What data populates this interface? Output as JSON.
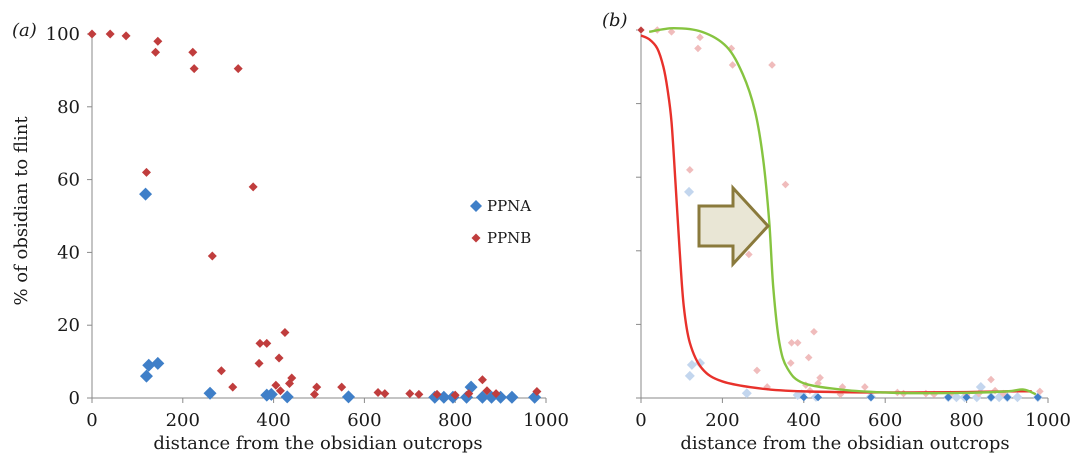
{
  "chart_data": [
    {
      "type": "scatter",
      "panel_label": "(a)",
      "xlabel": "distance from the obsidian outcrops",
      "ylabel": "% of obsidian to flint",
      "xlim": [
        0,
        1000
      ],
      "ylim": [
        0,
        100
      ],
      "x_ticks": [
        0,
        200,
        400,
        600,
        800,
        1000
      ],
      "y_ticks": [
        0,
        20,
        40,
        60,
        80,
        100
      ],
      "legend_position": "right-middle",
      "series": [
        {
          "name": "PPNA",
          "color": "#3f7fc8",
          "marker": "diamond-large",
          "points": [
            [
              118,
              56
            ],
            [
              120,
              6
            ],
            [
              125,
              9
            ],
            [
              145,
              9.5
            ],
            [
              260,
              1.3
            ],
            [
              385,
              0.8
            ],
            [
              395,
              1
            ],
            [
              430,
              0.3
            ],
            [
              565,
              0.3
            ],
            [
              755,
              0.2
            ],
            [
              775,
              0.2
            ],
            [
              795,
              0.2
            ],
            [
              825,
              0.2
            ],
            [
              835,
              3
            ],
            [
              860,
              0.2
            ],
            [
              880,
              0.2
            ],
            [
              900,
              0.2
            ],
            [
              925,
              0.2
            ],
            [
              975,
              0.2
            ]
          ]
        },
        {
          "name": "PPNB",
          "color": "#c03d3d",
          "marker": "diamond-small",
          "points": [
            [
              0,
              100
            ],
            [
              40,
              100
            ],
            [
              75,
              99.5
            ],
            [
              120,
              62
            ],
            [
              140,
              95
            ],
            [
              145,
              98
            ],
            [
              222,
              95
            ],
            [
              225,
              90.5
            ],
            [
              265,
              39
            ],
            [
              285,
              7.5
            ],
            [
              310,
              3
            ],
            [
              322,
              90.5
            ],
            [
              355,
              58
            ],
            [
              368,
              9.5
            ],
            [
              370,
              15
            ],
            [
              385,
              15
            ],
            [
              405,
              3.5
            ],
            [
              412,
              11
            ],
            [
              415,
              2
            ],
            [
              425,
              18
            ],
            [
              435,
              4
            ],
            [
              440,
              5.5
            ],
            [
              490,
              1
            ],
            [
              495,
              3
            ],
            [
              550,
              3
            ],
            [
              630,
              1.5
            ],
            [
              645,
              1.2
            ],
            [
              700,
              1.2
            ],
            [
              720,
              1
            ],
            [
              760,
              1
            ],
            [
              800,
              0.8
            ],
            [
              830,
              1.2
            ],
            [
              860,
              5
            ],
            [
              870,
              2
            ],
            [
              890,
              1.2
            ],
            [
              980,
              1.8
            ]
          ]
        }
      ]
    },
    {
      "type": "line",
      "panel_label": "(b)",
      "xlabel": "distance from the obsidian outcrops",
      "xlim": [
        0,
        1000
      ],
      "ylim": [
        0,
        100
      ],
      "x_ticks": [
        0,
        200,
        400,
        600,
        800,
        1000
      ],
      "note_arrow": "right-pointing arrow from red curve to green curve",
      "curves": [
        {
          "color": "#e8312b",
          "points": [
            [
              0,
              98.5
            ],
            [
              20,
              97.5
            ],
            [
              40,
              95
            ],
            [
              55,
              90
            ],
            [
              65,
              84
            ],
            [
              75,
              75
            ],
            [
              85,
              58
            ],
            [
              95,
              40
            ],
            [
              105,
              25
            ],
            [
              120,
              15
            ],
            [
              150,
              8
            ],
            [
              200,
              4.5
            ],
            [
              300,
              2.5
            ],
            [
              400,
              1.8
            ],
            [
              600,
              1.5
            ],
            [
              800,
              1.6
            ],
            [
              900,
              1.8
            ],
            [
              960,
              1.8
            ]
          ]
        },
        {
          "color": "#86c440",
          "points": [
            [
              20,
              99.5
            ],
            [
              80,
              100.5
            ],
            [
              150,
              99.5
            ],
            [
              210,
              95.5
            ],
            [
              250,
              88
            ],
            [
              280,
              78
            ],
            [
              300,
              65
            ],
            [
              315,
              48
            ],
            [
              325,
              30
            ],
            [
              340,
              15
            ],
            [
              360,
              8
            ],
            [
              400,
              4
            ],
            [
              500,
              2.2
            ],
            [
              600,
              1.5
            ],
            [
              700,
              1.3
            ],
            [
              800,
              1.4
            ],
            [
              900,
              1.8
            ],
            [
              940,
              2.3
            ],
            [
              970,
              1
            ]
          ]
        }
      ],
      "faded_points": "PPNA and PPNB points from panel (a) shown in light tint"
    }
  ]
}
